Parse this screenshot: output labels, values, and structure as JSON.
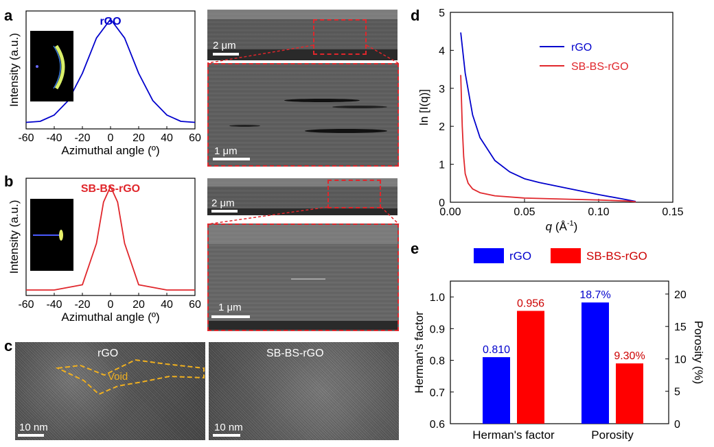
{
  "panels": {
    "a": {
      "letter": "a",
      "label": "rGO",
      "xlabel": "Azimuthal angle (º)",
      "ylabel": "Intensity (a.u.)",
      "xticks": [
        "-60",
        "-40",
        "-20",
        "0",
        "20",
        "40",
        "60"
      ],
      "scale_top": "2 μm",
      "scale_zoom": "1 μm",
      "color": "#0000cc"
    },
    "b": {
      "letter": "b",
      "label": "SB-BS-rGO",
      "xlabel": "Azimuthal angle (º)",
      "ylabel": "Intensity (a.u.)",
      "xticks": [
        "-60",
        "-40",
        "-20",
        "0",
        "20",
        "40",
        "60"
      ],
      "scale_top": "2 μm",
      "scale_zoom": "1 μm",
      "color": "#e0262b"
    },
    "c": {
      "letter": "c",
      "left_label": "rGO",
      "void_label": "Void",
      "right_label": "SB-BS-rGO",
      "scale_left": "10 nm",
      "scale_right": "10 nm"
    },
    "d": {
      "letter": "d",
      "xlabel_q": "q",
      "xlabel_unit": " (Å",
      "xlabel_exp": "-1",
      "xlabel_close": ")",
      "ylabel": "ln [I(q)]",
      "xticks": [
        "0.00",
        "0.05",
        "0.10",
        "0.15"
      ],
      "yticks": [
        "0",
        "1",
        "2",
        "3",
        "4",
        "5"
      ],
      "legend": [
        "rGO",
        "SB-BS-rGO"
      ]
    },
    "e": {
      "letter": "e",
      "legend": [
        "rGO",
        "SB-BS-rGO"
      ],
      "ylabel_left": "Herman's factor",
      "ylabel_right": "Porosity (%)",
      "yticks_left": [
        "0.6",
        "0.7",
        "0.8",
        "0.9",
        "1.0"
      ],
      "yticks_right": [
        "0",
        "5",
        "10",
        "15",
        "20"
      ],
      "categories": [
        "Herman's factor",
        "Porosity"
      ]
    }
  },
  "chart_data": [
    {
      "type": "line",
      "panel": "a",
      "series": [
        {
          "name": "rGO",
          "x": [
            -60,
            -50,
            -40,
            -30,
            -20,
            -10,
            0,
            10,
            20,
            30,
            40,
            50,
            60
          ],
          "values": [
            0.01,
            0.02,
            0.08,
            0.22,
            0.48,
            0.82,
            1.0,
            0.82,
            0.48,
            0.22,
            0.08,
            0.02,
            0.01
          ]
        }
      ],
      "xlim": [
        -60,
        60
      ]
    },
    {
      "type": "line",
      "panel": "b",
      "series": [
        {
          "name": "SB-BS-rGO",
          "x": [
            -60,
            -40,
            -20,
            -10,
            -5,
            0,
            5,
            10,
            20,
            40,
            60
          ],
          "values": [
            0.0,
            0.0,
            0.05,
            0.45,
            0.85,
            1.0,
            0.85,
            0.45,
            0.05,
            0.0,
            0.0
          ]
        }
      ],
      "xlim": [
        -60,
        60
      ]
    },
    {
      "type": "line",
      "panel": "d",
      "xlim": [
        0,
        0.15
      ],
      "ylim": [
        0,
        5
      ],
      "series": [
        {
          "name": "rGO",
          "color": "#0000cc",
          "x": [
            0.007,
            0.01,
            0.015,
            0.02,
            0.03,
            0.04,
            0.05,
            0.06,
            0.08,
            0.1,
            0.12,
            0.125
          ],
          "values": [
            4.47,
            3.4,
            2.3,
            1.7,
            1.1,
            0.8,
            0.62,
            0.52,
            0.36,
            0.2,
            0.06,
            0.02
          ]
        },
        {
          "name": "SB-BS-rGO",
          "color": "#e0262b",
          "x": [
            0.007,
            0.008,
            0.009,
            0.01,
            0.012,
            0.015,
            0.02,
            0.03,
            0.05,
            0.08,
            0.1,
            0.12,
            0.125
          ],
          "values": [
            3.35,
            2.0,
            1.2,
            0.75,
            0.5,
            0.35,
            0.25,
            0.17,
            0.11,
            0.08,
            0.06,
            0.03,
            0.01
          ]
        }
      ]
    },
    {
      "type": "bar",
      "panel": "e",
      "categories": [
        "Herman's factor",
        "Porosity"
      ],
      "series": [
        {
          "name": "rGO",
          "color": "#0000ff",
          "values": [
            0.81,
            18.7
          ],
          "labels": [
            "0.810",
            "18.7%"
          ]
        },
        {
          "name": "SB-BS-rGO",
          "color": "#ff0000",
          "values": [
            0.956,
            9.3
          ],
          "labels": [
            "0.956",
            "9.30%"
          ]
        }
      ],
      "ylim_left": [
        0.6,
        1.05
      ],
      "ylim_right": [
        0,
        22
      ]
    }
  ]
}
